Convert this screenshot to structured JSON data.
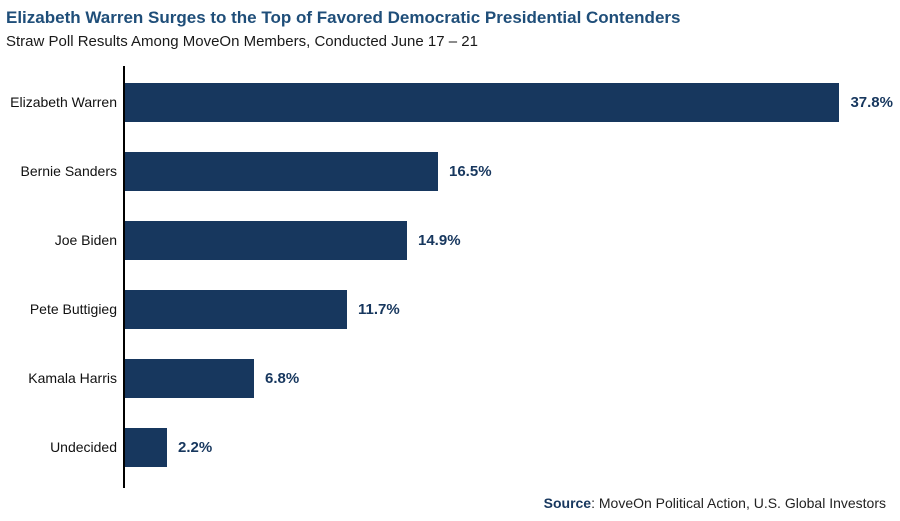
{
  "title": "Elizabeth Warren Surges to the Top of Favored Democratic Presidential Contenders",
  "subtitle": "Straw Poll Results Among MoveOn Members, Conducted June 17 – 21",
  "source": {
    "label": "Source",
    "rest": ": MoveOn Political Action, U.S. Global Investors"
  },
  "colors": {
    "bar": "#17375e",
    "title": "#1f4e79",
    "value_label": "#17375e",
    "axis": "#000000"
  },
  "chart_data": {
    "type": "bar",
    "orientation": "horizontal",
    "title": "Elizabeth Warren Surges to the Top of Favored Democratic Presidential Contenders",
    "subtitle": "Straw Poll Results Among MoveOn Members, Conducted June 17 – 21",
    "categories": [
      "Elizabeth Warren",
      "Bernie Sanders",
      "Joe Biden",
      "Pete Buttigieg",
      "Kamala Harris",
      "Undecided"
    ],
    "values": [
      37.8,
      16.5,
      14.9,
      11.7,
      6.8,
      2.2
    ],
    "value_labels": [
      "37.8%",
      "16.5%",
      "14.9%",
      "11.7%",
      "6.8%",
      "2.2%"
    ],
    "xlabel": "",
    "ylabel": "",
    "xlim": [
      0,
      40
    ],
    "grid": false,
    "legend": false,
    "bar_color": "#17375e"
  }
}
